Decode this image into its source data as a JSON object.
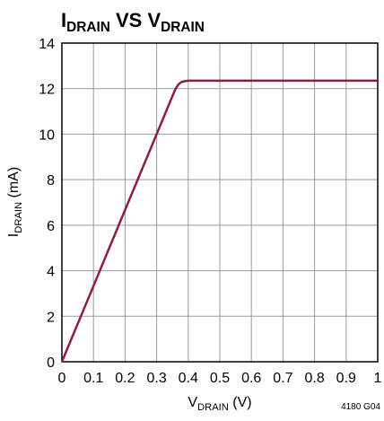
{
  "chart_data": {
    "type": "line",
    "title": [
      "I",
      "DRAIN",
      " VS V",
      "DRAIN"
    ],
    "xlabel": [
      "V",
      "DRAIN",
      " (V)"
    ],
    "ylabel": [
      "I",
      "DRAIN",
      " (mA)"
    ],
    "note": "4180 G04",
    "x": [
      0,
      0.1,
      0.2,
      0.3,
      0.35,
      0.36,
      0.37,
      0.38,
      0.39,
      0.4,
      0.5,
      0.6,
      0.7,
      0.8,
      0.9,
      1
    ],
    "series": [
      {
        "name": "IDRAIN",
        "color": "#8c1d40",
        "values": [
          0,
          3.33,
          6.67,
          10,
          11.67,
          12.0,
          12.2,
          12.3,
          12.33,
          12.35,
          12.35,
          12.35,
          12.35,
          12.35,
          12.35,
          12.35
        ]
      }
    ],
    "xlim": [
      0,
      1
    ],
    "xticks": [
      0,
      0.1,
      0.2,
      0.3,
      0.4,
      0.5,
      0.6,
      0.7,
      0.8,
      0.9,
      1
    ],
    "ylim": [
      0,
      14
    ],
    "yticks": [
      0,
      2,
      4,
      6,
      8,
      10,
      12,
      14
    ],
    "grid": true
  }
}
